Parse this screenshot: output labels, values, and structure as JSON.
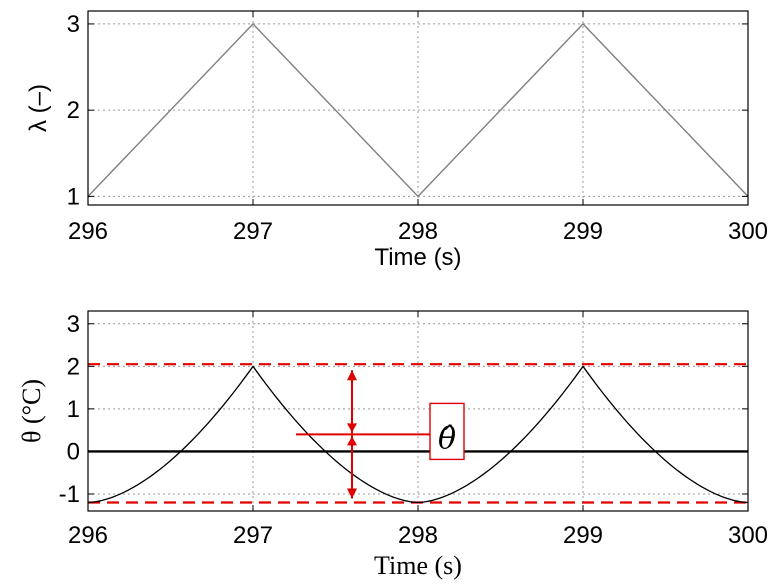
{
  "chart_data": [
    {
      "type": "line",
      "xlabel": "Time (s)",
      "ylabel": "λ (–)",
      "xlim": [
        296,
        300
      ],
      "ylim": [
        0.9,
        3.15
      ],
      "xticks": [
        "296",
        "297",
        "298",
        "299",
        "300"
      ],
      "yticks": [
        "1",
        "2",
        "3"
      ],
      "grid": true,
      "series": [
        {
          "x": [
            296,
            297,
            298,
            299,
            300
          ],
          "y": [
            1,
            3,
            1,
            3,
            1
          ],
          "color": "#808080"
        }
      ]
    },
    {
      "type": "line",
      "xlabel": "Time (s)",
      "ylabel": "θ (°C)",
      "xlim": [
        296,
        300
      ],
      "ylim": [
        -1.4,
        3.3
      ],
      "xticks": [
        "296",
        "297",
        "298",
        "299",
        "300"
      ],
      "yticks": [
        "3",
        "2",
        "1",
        "0",
        "-1"
      ],
      "grid": true,
      "series": [
        {
          "curve": "cusp-wave",
          "x": [
            296,
            297,
            298,
            299,
            300
          ],
          "y": [
            -1.2,
            2.0,
            -1.2,
            2.0,
            -1.2
          ],
          "color": "#000000"
        }
      ],
      "reference_lines": [
        {
          "y": 0,
          "color": "#000000"
        },
        {
          "y": 2.05,
          "color": "#e00000",
          "style": "dashed"
        },
        {
          "y": -1.2,
          "color": "#e00000",
          "style": "dashed"
        }
      ],
      "annotation": {
        "label": "θ̂",
        "arrow_x": 297.6,
        "from_y": -1.2,
        "to_y": 2.05,
        "mid_y": 0.4,
        "color": "#e00000"
      }
    }
  ]
}
